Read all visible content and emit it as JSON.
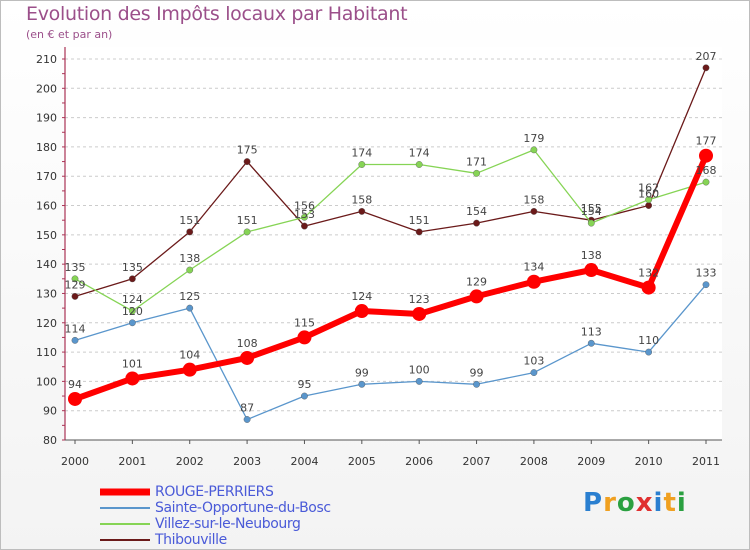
{
  "header": {
    "title": "Evolution des Impôts locaux par Habitant",
    "subtitle": "(en € et par an)"
  },
  "logo": {
    "text": "Proxiti",
    "letters": [
      {
        "char": "P",
        "color": "#2a7fd0"
      },
      {
        "char": "r",
        "color": "#f0a020"
      },
      {
        "char": "o",
        "color": "#2aa040"
      },
      {
        "char": "x",
        "color": "#e03030"
      },
      {
        "char": "i",
        "color": "#2a7fd0"
      },
      {
        "char": "t",
        "color": "#f0a020"
      },
      {
        "char": "i",
        "color": "#2aa040"
      }
    ]
  },
  "chart_data": {
    "type": "line",
    "title": "Evolution des Impôts locaux par Habitant",
    "subtitle": "(en € et par an)",
    "xlabel": "",
    "ylabel": "",
    "x": [
      "2000",
      "2001",
      "2002",
      "2003",
      "2004",
      "2005",
      "2006",
      "2007",
      "2008",
      "2009",
      "2010",
      "2011"
    ],
    "ylim": [
      80,
      210
    ],
    "yticks": [
      80,
      90,
      100,
      110,
      120,
      130,
      140,
      150,
      160,
      170,
      180,
      190,
      200,
      210
    ],
    "grid": "horizontal dashed",
    "legend_position": "bottom-left",
    "series": [
      {
        "name": "ROUGE-PERRIERS",
        "color": "#ff0000",
        "values": [
          94,
          101,
          104,
          108,
          115,
          124,
          123,
          129,
          134,
          138,
          132,
          177
        ]
      },
      {
        "name": "Sainte-Opportune-du-Bosc",
        "color": "#5a96cc",
        "values": [
          114,
          120,
          125,
          87,
          95,
          99,
          100,
          99,
          103,
          113,
          110,
          133
        ]
      },
      {
        "name": "Villez-sur-le-Neubourg",
        "color": "#86d455",
        "values": [
          135,
          124,
          138,
          151,
          156,
          174,
          174,
          171,
          179,
          154,
          162,
          168
        ]
      },
      {
        "name": "Thibouville",
        "color": "#6b1a1a",
        "values": [
          129,
          135,
          151,
          175,
          153,
          158,
          151,
          154,
          158,
          155,
          160,
          207
        ]
      }
    ]
  }
}
